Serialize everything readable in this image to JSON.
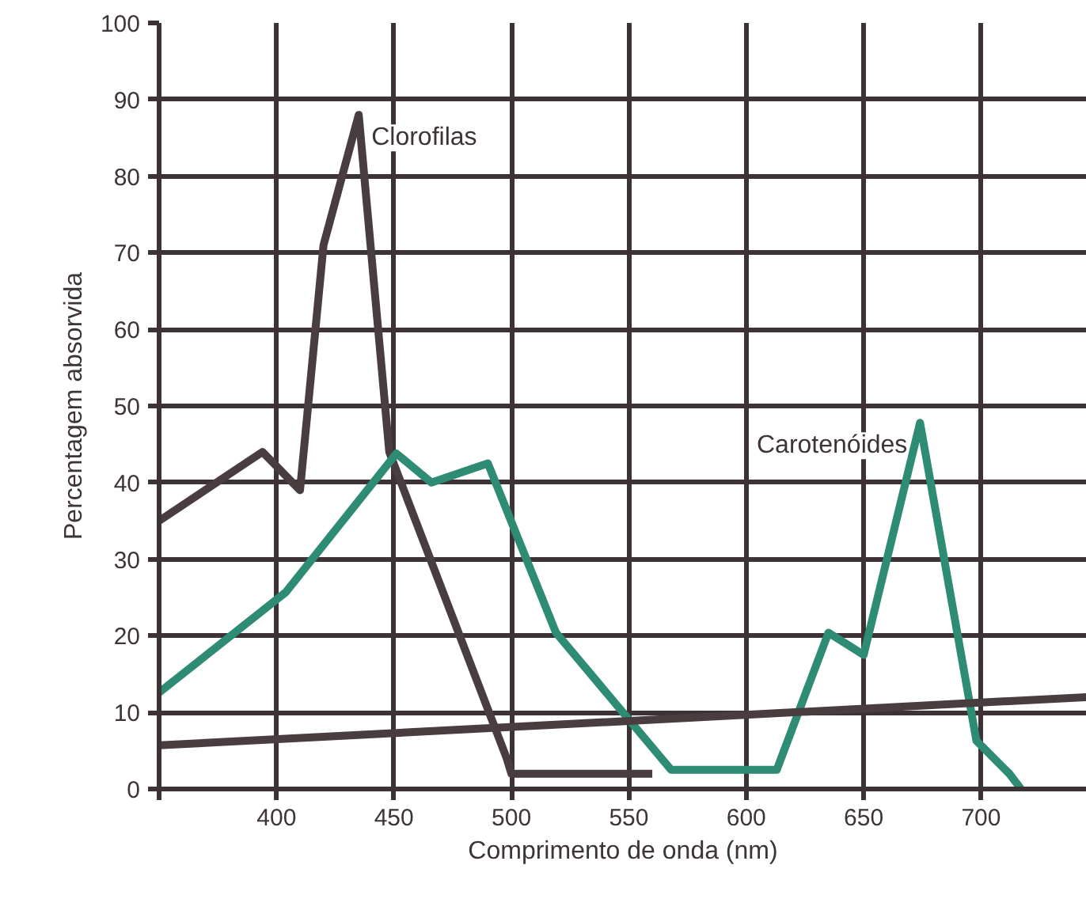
{
  "chart_data": {
    "type": "line",
    "xlabel": "Comprimento de onda (nm)",
    "ylabel": "Percentagem absorvida",
    "xlim": [
      350,
      745
    ],
    "ylim": [
      0,
      100
    ],
    "xticks": [
      {
        "value": 350,
        "label": null
      },
      400,
      450,
      500,
      550,
      600,
      650,
      700
    ],
    "yticks": [
      0,
      10,
      20,
      30,
      40,
      50,
      60,
      70,
      80,
      90,
      100
    ],
    "grid": true,
    "marker": "none",
    "line_style": "solid",
    "series": [
      {
        "name": "Clorofilas",
        "color": "#4a3d40",
        "x": [
          350,
          394,
          410,
          420,
          435,
          448,
          498,
          500,
          560
        ],
        "values": [
          35,
          44,
          39,
          71,
          88,
          44,
          4,
          2,
          2
        ]
      },
      {
        "name": "Carotenóides",
        "color": "#2e8b74",
        "x": [
          350,
          404,
          451,
          466,
          490,
          519,
          568,
          613,
          635,
          650,
          674,
          698,
          712,
          717
        ],
        "values": [
          12.6,
          25.7,
          43.8,
          40,
          42.5,
          20.4,
          2.5,
          2.5,
          20.4,
          17.5,
          47.8,
          6.3,
          2,
          0
        ]
      },
      {
        "color": "#4a3d40",
        "x": [
          350,
          745
        ],
        "values": [
          5.7,
          12
        ]
      }
    ]
  }
}
